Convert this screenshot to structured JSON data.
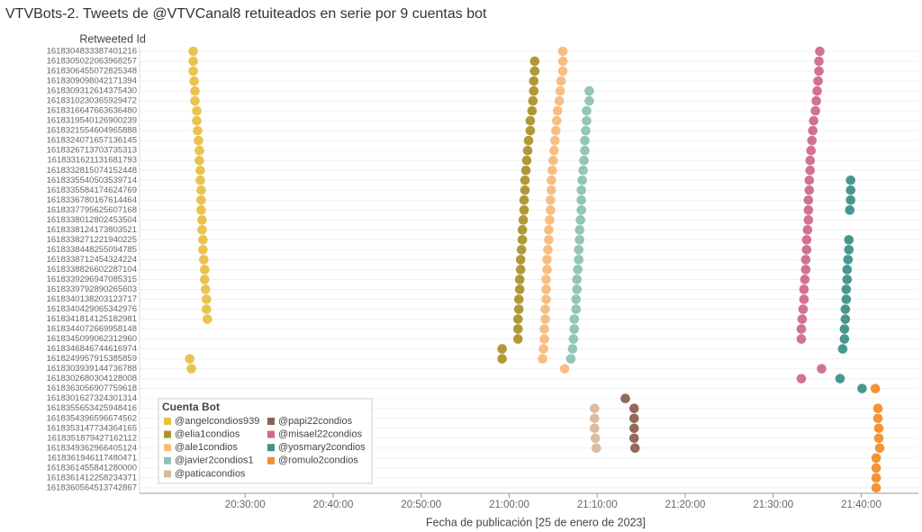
{
  "chart_data": {
    "type": "scatter",
    "title": "VTVBots-2. Tweets de @VTVCanal8 retuiteados en serie por 9 cuentas bot",
    "y_label": "Retweeted Id",
    "x_label": "Fecha de publicación [25 de enero de 2023]",
    "legend_title": "Cuenta Bot",
    "legend": "lower-left",
    "categories": [
      "1618304833387401216",
      "1618305022063968257",
      "1618306455072825348",
      "1618309098042171394",
      "1618309312614375430",
      "1618310230365929472",
      "1618316647663636480",
      "1618319540126900239",
      "1618321554604965888",
      "1618324071657136145",
      "1618326713703735313",
      "1618331621131681793",
      "1618332815074152448",
      "1618335540503539714",
      "1618335584174624769",
      "1618336780167614464",
      "1618337795625607168",
      "1618338012802453504",
      "1618338124173803521",
      "1618338271221940225",
      "1618338448255094785",
      "1618338712454324224",
      "1618338826602287104",
      "1618339296947085315",
      "1618339792890265603",
      "1618340138203123717",
      "1618340429065342976",
      "1618341814125182981",
      "1618344072669958148",
      "1618345099062312960",
      "1618346846744616974",
      "1618249957915385859",
      "1618303939144736788",
      "1618302680304128008",
      "1618363056907759618",
      "1618301627324301314",
      "1618355653425948416",
      "1618354396596674562",
      "1618353147734364165",
      "1618351879427162112",
      "1618349362966405124",
      "1618361946117480471",
      "1618361455841280000",
      "1618361412258234371",
      "1618360564513742867"
    ],
    "xlim": [
      1218,
      1306.5
    ],
    "xticks": [
      {
        "value": 1230,
        "label": "20:30:00"
      },
      {
        "value": 1240,
        "label": "20:40:00"
      },
      {
        "value": 1250,
        "label": "20:50:00"
      },
      {
        "value": 1260,
        "label": "21:00:00"
      },
      {
        "value": 1270,
        "label": "21:10:00"
      },
      {
        "value": 1280,
        "label": "21:20:00"
      },
      {
        "value": 1290,
        "label": "21:30:00"
      },
      {
        "value": 1300,
        "label": "21:40:00"
      }
    ],
    "series": [
      {
        "name": "@angelcondios939",
        "color": "#e9c046",
        "values": [
          1224.1,
          1224.1,
          1224.1,
          1224.2,
          1224.3,
          1224.3,
          1224.5,
          1224.5,
          1224.6,
          1224.7,
          1224.8,
          1224.8,
          1224.9,
          1224.9,
          1225.0,
          1225.0,
          1225.0,
          1225.1,
          1225.1,
          1225.2,
          1225.2,
          1225.3,
          1225.4,
          1225.4,
          1225.5,
          1225.6,
          1225.6,
          1225.7,
          null,
          null,
          null,
          1223.7,
          1223.9,
          null,
          null,
          null,
          null,
          null,
          null,
          null,
          null,
          null,
          null,
          null,
          null
        ]
      },
      {
        "name": "@elia1condios",
        "color": "#ad922c",
        "values": [
          null,
          1262.9,
          1262.9,
          1262.8,
          1262.8,
          1262.7,
          1262.6,
          1262.4,
          1262.4,
          1262.2,
          1262.1,
          1262.0,
          1261.9,
          1261.8,
          1261.8,
          1261.7,
          1261.7,
          1261.6,
          1261.5,
          1261.5,
          1261.4,
          1261.3,
          1261.3,
          1261.2,
          1261.2,
          1261.1,
          1261.1,
          1261.0,
          1261.0,
          1261.0,
          1259.2,
          1259.2,
          null,
          null,
          null,
          null,
          null,
          null,
          null,
          null,
          null,
          null,
          null,
          null,
          null
        ]
      },
      {
        "name": "@ale1condios",
        "color": "#f7bb7c",
        "values": [
          1266.1,
          1266.1,
          1266.1,
          1265.9,
          1265.8,
          1265.7,
          1265.5,
          1265.4,
          1265.3,
          1265.2,
          1265.1,
          1265.0,
          1264.9,
          1264.8,
          1264.8,
          1264.7,
          1264.7,
          1264.6,
          1264.5,
          1264.5,
          1264.4,
          1264.3,
          1264.3,
          1264.2,
          1264.2,
          1264.2,
          1264.1,
          1264.1,
          1264.0,
          1264.0,
          1263.9,
          1263.8,
          1266.3,
          null,
          null,
          null,
          null,
          null,
          null,
          null,
          null,
          null,
          null,
          null,
          null
        ]
      },
      {
        "name": "@javier2condios1",
        "color": "#8cc3b3",
        "values": [
          null,
          null,
          null,
          null,
          1269.1,
          1269.1,
          1268.8,
          1268.8,
          1268.7,
          1268.6,
          1268.6,
          1268.5,
          1268.4,
          1268.3,
          1268.2,
          1268.2,
          1268.2,
          1268.1,
          1268.0,
          1268.0,
          1267.9,
          1267.9,
          1267.8,
          1267.7,
          1267.7,
          1267.6,
          1267.6,
          1267.4,
          1267.4,
          1267.3,
          1267.2,
          1267.0,
          null,
          null,
          null,
          null,
          null,
          null,
          null,
          null,
          null,
          null,
          null,
          null,
          null
        ]
      },
      {
        "name": "@paticacondios",
        "color": "#d8b89c",
        "values": [
          null,
          null,
          null,
          null,
          null,
          null,
          null,
          null,
          null,
          null,
          null,
          null,
          null,
          null,
          null,
          null,
          null,
          null,
          null,
          null,
          null,
          null,
          null,
          null,
          null,
          null,
          null,
          null,
          null,
          null,
          null,
          null,
          null,
          null,
          null,
          null,
          1269.7,
          1269.7,
          1269.7,
          1269.8,
          1269.9,
          null,
          null,
          null,
          null
        ]
      },
      {
        "name": "@papi22condios",
        "color": "#8e6153",
        "values": [
          null,
          null,
          null,
          null,
          null,
          null,
          null,
          null,
          null,
          null,
          null,
          null,
          null,
          null,
          null,
          null,
          null,
          null,
          null,
          null,
          null,
          null,
          null,
          null,
          null,
          null,
          null,
          null,
          null,
          null,
          null,
          null,
          null,
          null,
          null,
          1273.2,
          1274.2,
          1274.2,
          1274.2,
          1274.2,
          1274.3,
          null,
          null,
          null,
          null
        ]
      },
      {
        "name": "@misael22condios",
        "color": "#cf6a8c",
        "values": [
          1295.3,
          1295.2,
          1295.2,
          1295.1,
          1295.0,
          1294.9,
          1294.8,
          1294.6,
          1294.5,
          1294.4,
          1294.3,
          1294.2,
          1294.2,
          1294.1,
          1294.1,
          1294.0,
          1294.0,
          1294.0,
          1293.9,
          1293.8,
          1293.8,
          1293.7,
          1293.7,
          1293.6,
          1293.5,
          1293.5,
          1293.4,
          1293.3,
          1293.2,
          1293.2,
          null,
          null,
          1295.5,
          1293.2,
          null,
          null,
          null,
          null,
          null,
          null,
          null,
          null,
          null,
          null,
          null
        ]
      },
      {
        "name": "@yosmary2condios",
        "color": "#3e9189",
        "values": [
          null,
          null,
          null,
          null,
          null,
          null,
          null,
          null,
          null,
          null,
          null,
          null,
          null,
          1298.8,
          1298.8,
          1298.8,
          1298.7,
          null,
          null,
          1298.6,
          1298.6,
          1298.5,
          1298.4,
          1298.4,
          1298.3,
          1298.3,
          1298.2,
          1298.2,
          1298.1,
          1298.1,
          1297.9,
          null,
          null,
          1297.6,
          1300.1,
          null,
          null,
          null,
          null,
          null,
          null,
          null,
          null,
          null,
          null
        ]
      },
      {
        "name": "@romulo2condios",
        "color": "#f28e2b",
        "values": [
          null,
          null,
          null,
          null,
          null,
          null,
          null,
          null,
          null,
          null,
          null,
          null,
          null,
          null,
          null,
          null,
          null,
          null,
          null,
          null,
          null,
          null,
          null,
          null,
          null,
          null,
          null,
          null,
          null,
          null,
          null,
          null,
          null,
          null,
          1301.6,
          null,
          1301.9,
          1301.9,
          1302.0,
          1302.0,
          1302.1,
          1301.7,
          1301.7,
          1301.7,
          1301.7
        ]
      }
    ]
  }
}
